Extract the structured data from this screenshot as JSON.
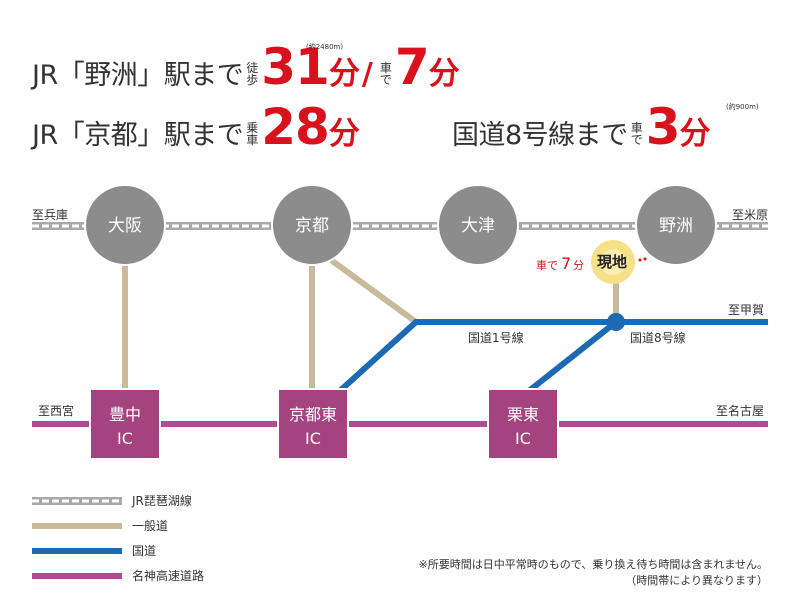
{
  "header": {
    "line1": {
      "prefix": "JR「野洲」駅まで",
      "walk_label": [
        "徒",
        "歩"
      ],
      "walk_distance": "(約2480m)",
      "walk_value": "31",
      "unit": "分",
      "slash": "/",
      "car_label": [
        "車",
        "で"
      ],
      "car_value": "7",
      "car_unit": "分"
    },
    "line2": {
      "prefix": "JR「京都」駅まで",
      "train_label": [
        "乗",
        "車"
      ],
      "value": "28",
      "unit": "分"
    },
    "line3": {
      "prefix": "国道8号線まで",
      "car_label": [
        "車",
        "で"
      ],
      "distance": "(約900m)",
      "value": "3",
      "unit": "分"
    }
  },
  "map": {
    "stations": [
      "大阪",
      "京都",
      "大津",
      "野洲"
    ],
    "ics": [
      [
        "豊中",
        "IC"
      ],
      [
        "京都東",
        "IC"
      ],
      [
        "栗東",
        "IC"
      ]
    ],
    "direction_labels": {
      "jr_left": "至兵庫",
      "jr_right": "至米原",
      "route1_right": "至甲賀",
      "expressway_left": "至西宮",
      "expressway_right": "至名古屋"
    },
    "road_labels": {
      "route1": "国道1号線",
      "route8": "国道8号線"
    },
    "site": {
      "label": "現地",
      "car_prefix": "車で",
      "car_minutes": "7",
      "car_unit": "分"
    }
  },
  "legend": [
    {
      "label": "JR琵琶湖線",
      "style": "dashed",
      "color": "#a9a9a9"
    },
    {
      "label": "一般道",
      "style": "solid",
      "color": "#c9bb99"
    },
    {
      "label": "国道",
      "style": "solid",
      "color": "#1e69b3"
    },
    {
      "label": "名神高速道路",
      "style": "solid",
      "color": "#b04b96"
    }
  ],
  "note": {
    "line1": "※所要時間は日中平常時のもので、乗り換え待ち時間は含まれません。",
    "line2": "（時間帯により異なります）"
  },
  "colors": {
    "accent_red": "#d9111c",
    "station_gray": "#8c8c8c",
    "ic_purple": "#a4437f",
    "route_blue": "#1e69b3",
    "road_tan": "#c9bb99",
    "expressway_pink": "#b04b96",
    "site_yellow": "#f7e08a"
  }
}
